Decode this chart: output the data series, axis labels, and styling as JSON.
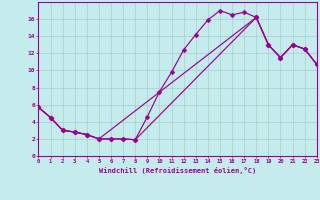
{
  "xlabel": "Windchill (Refroidissement éolien,°C)",
  "bg_color": "#c5ecec",
  "grid_color": "#aacccc",
  "line_color": "#990099",
  "xmin": 0,
  "xmax": 23,
  "ymin": 0,
  "ymax": 18,
  "curve_main_x": [
    0,
    1,
    2,
    3,
    4,
    5,
    6,
    7,
    8,
    9,
    10,
    11,
    12,
    13,
    14,
    15,
    16,
    17,
    18,
    19,
    20,
    21,
    22,
    23
  ],
  "curve_main_y": [
    5.7,
    4.5,
    3.0,
    2.8,
    2.5,
    2.0,
    2.0,
    2.0,
    1.9,
    4.6,
    7.5,
    9.8,
    12.4,
    14.2,
    15.9,
    17.0,
    16.5,
    16.8,
    16.2,
    13.0,
    11.5,
    13.0,
    12.5,
    10.7
  ],
  "curve_diag1_x": [
    0,
    1,
    2,
    3,
    4,
    5,
    6,
    7,
    8,
    18,
    19,
    20,
    21,
    22,
    23
  ],
  "curve_diag1_y": [
    5.7,
    4.5,
    3.0,
    2.8,
    2.5,
    2.0,
    2.0,
    2.0,
    1.9,
    16.2,
    13.0,
    11.5,
    13.0,
    12.5,
    10.7
  ],
  "curve_diag2_x": [
    0,
    1,
    2,
    3,
    4,
    5,
    18,
    19,
    20,
    21,
    22,
    23
  ],
  "curve_diag2_y": [
    5.7,
    4.5,
    3.0,
    2.8,
    2.5,
    2.0,
    16.2,
    13.0,
    11.5,
    13.0,
    12.5,
    10.7
  ],
  "ytick_values": [
    0,
    2,
    4,
    6,
    8,
    10,
    12,
    14,
    16
  ],
  "marker_size": 2.5,
  "linewidth": 0.85
}
